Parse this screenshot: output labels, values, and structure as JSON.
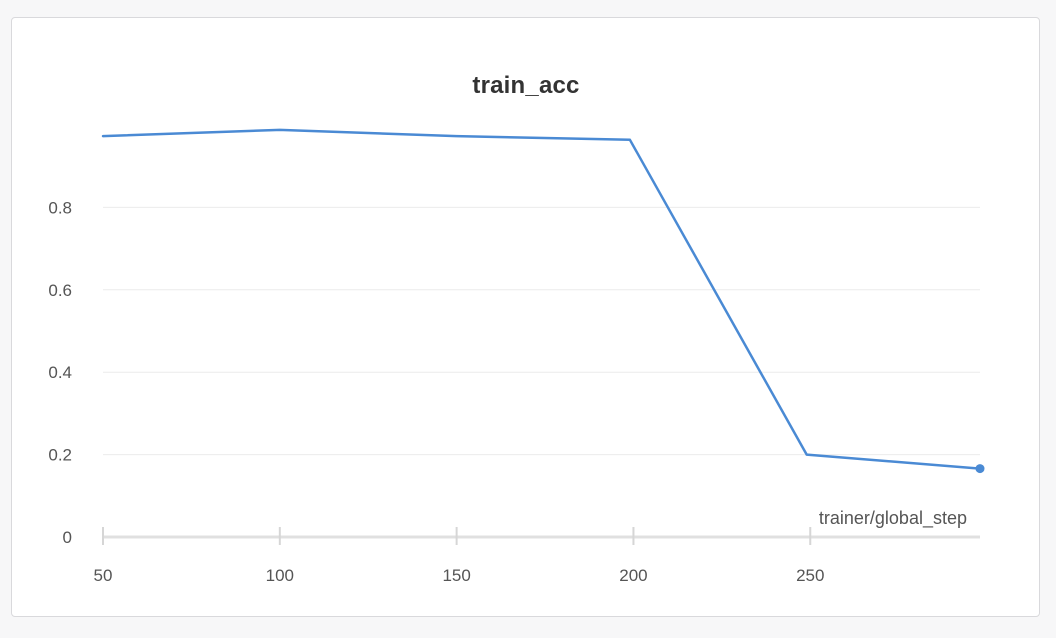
{
  "chart_data": {
    "type": "line",
    "title": "train_acc",
    "xlabel": "trainer/global_step",
    "ylabel": "",
    "xlim": [
      50,
      298
    ],
    "ylim": [
      0,
      1
    ],
    "x_ticks": [
      "50",
      "100",
      "150",
      "200",
      "250"
    ],
    "y_ticks": [
      "0",
      "0.2",
      "0.4",
      "0.6",
      "0.8"
    ],
    "grid": true,
    "series": [
      {
        "color": "#4a8ad4",
        "x": [
          50,
          100,
          150,
          199,
          249,
          298
        ],
        "y": [
          0.973,
          0.988,
          0.973,
          0.964,
          0.2,
          0.166
        ]
      }
    ]
  }
}
